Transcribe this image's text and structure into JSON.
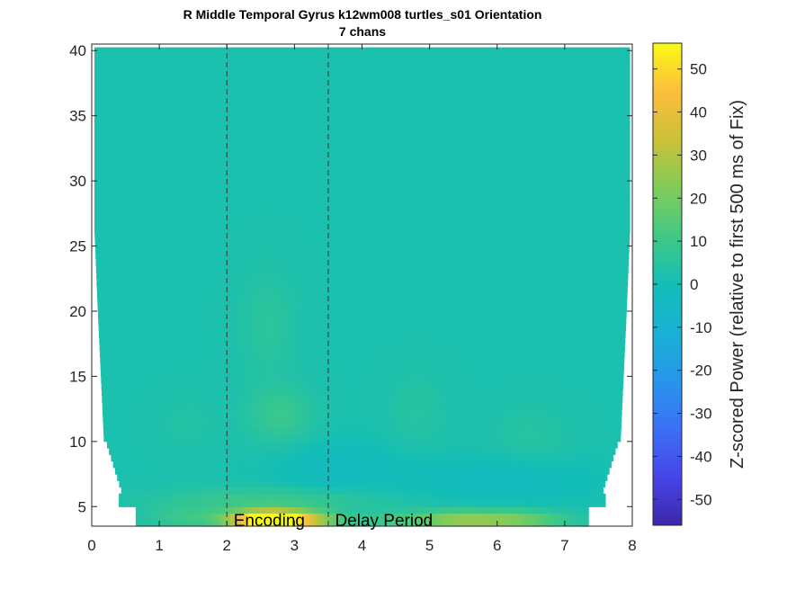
{
  "chart_data": {
    "type": "heatmap",
    "title": "R Middle Temporal Gyrus k12wm008 turtles_s01 Orientation",
    "subtitle": "7 chans",
    "xlabel": "",
    "ylabel": "",
    "xlim": [
      0,
      8
    ],
    "ylim": [
      3.5,
      40.5
    ],
    "x_ticks": [
      0,
      1,
      2,
      3,
      4,
      5,
      6,
      7,
      8
    ],
    "y_ticks": [
      5,
      10,
      15,
      20,
      25,
      30,
      35,
      40
    ],
    "grid": false,
    "event_markers": [
      {
        "x": 2.0,
        "style": "dashed"
      },
      {
        "x": 3.5,
        "style": "dashed"
      }
    ],
    "annotations": [
      {
        "text": "Encoding",
        "x": 2.1,
        "y": 4.0
      },
      {
        "text": "Delay Period",
        "x": 3.6,
        "y": 4.0
      }
    ],
    "colorbar": {
      "label": "Z-scored Power (relative to first 500 ms of Fix)",
      "colormap": "parula",
      "clim": [
        -56,
        56
      ],
      "ticks": [
        -50,
        -40,
        -30,
        -20,
        -10,
        0,
        10,
        20,
        30,
        40,
        50
      ]
    },
    "background_value": 2,
    "hotspots": [
      {
        "x": 2.9,
        "y": 4.0,
        "value": 52,
        "sx": 0.45,
        "sy": 0.5
      },
      {
        "x": 2.5,
        "y": 4.0,
        "value": 40,
        "sx": 0.35,
        "sy": 0.5
      },
      {
        "x": 6.1,
        "y": 4.0,
        "value": 24,
        "sx": 0.6,
        "sy": 0.5
      },
      {
        "x": 5.3,
        "y": 4.0,
        "value": 16,
        "sx": 0.4,
        "sy": 0.5
      },
      {
        "x": 1.5,
        "y": 4.2,
        "value": 10,
        "sx": 0.5,
        "sy": 0.6
      },
      {
        "x": 4.5,
        "y": 4.0,
        "value": 10,
        "sx": 0.4,
        "sy": 0.5
      },
      {
        "x": 2.7,
        "y": 5.6,
        "value": 10,
        "sx": 1.2,
        "sy": 0.6
      },
      {
        "x": 2.8,
        "y": 12.0,
        "value": 9,
        "sx": 0.35,
        "sy": 1.6
      },
      {
        "x": 2.6,
        "y": 19.0,
        "value": 6,
        "sx": 0.3,
        "sy": 3.0
      },
      {
        "x": 4.8,
        "y": 12.5,
        "value": 5,
        "sx": 0.3,
        "sy": 2.0
      },
      {
        "x": 6.5,
        "y": 10.5,
        "value": 5,
        "sx": 0.4,
        "sy": 1.5
      },
      {
        "x": 1.4,
        "y": 11.5,
        "value": 4,
        "sx": 0.3,
        "sy": 1.5
      },
      {
        "x": 3.6,
        "y": 8.0,
        "value": -3,
        "sx": 0.6,
        "sy": 1.5
      },
      {
        "x": 6.0,
        "y": 7.0,
        "value": -3,
        "sx": 1.0,
        "sy": 1.2
      }
    ]
  }
}
